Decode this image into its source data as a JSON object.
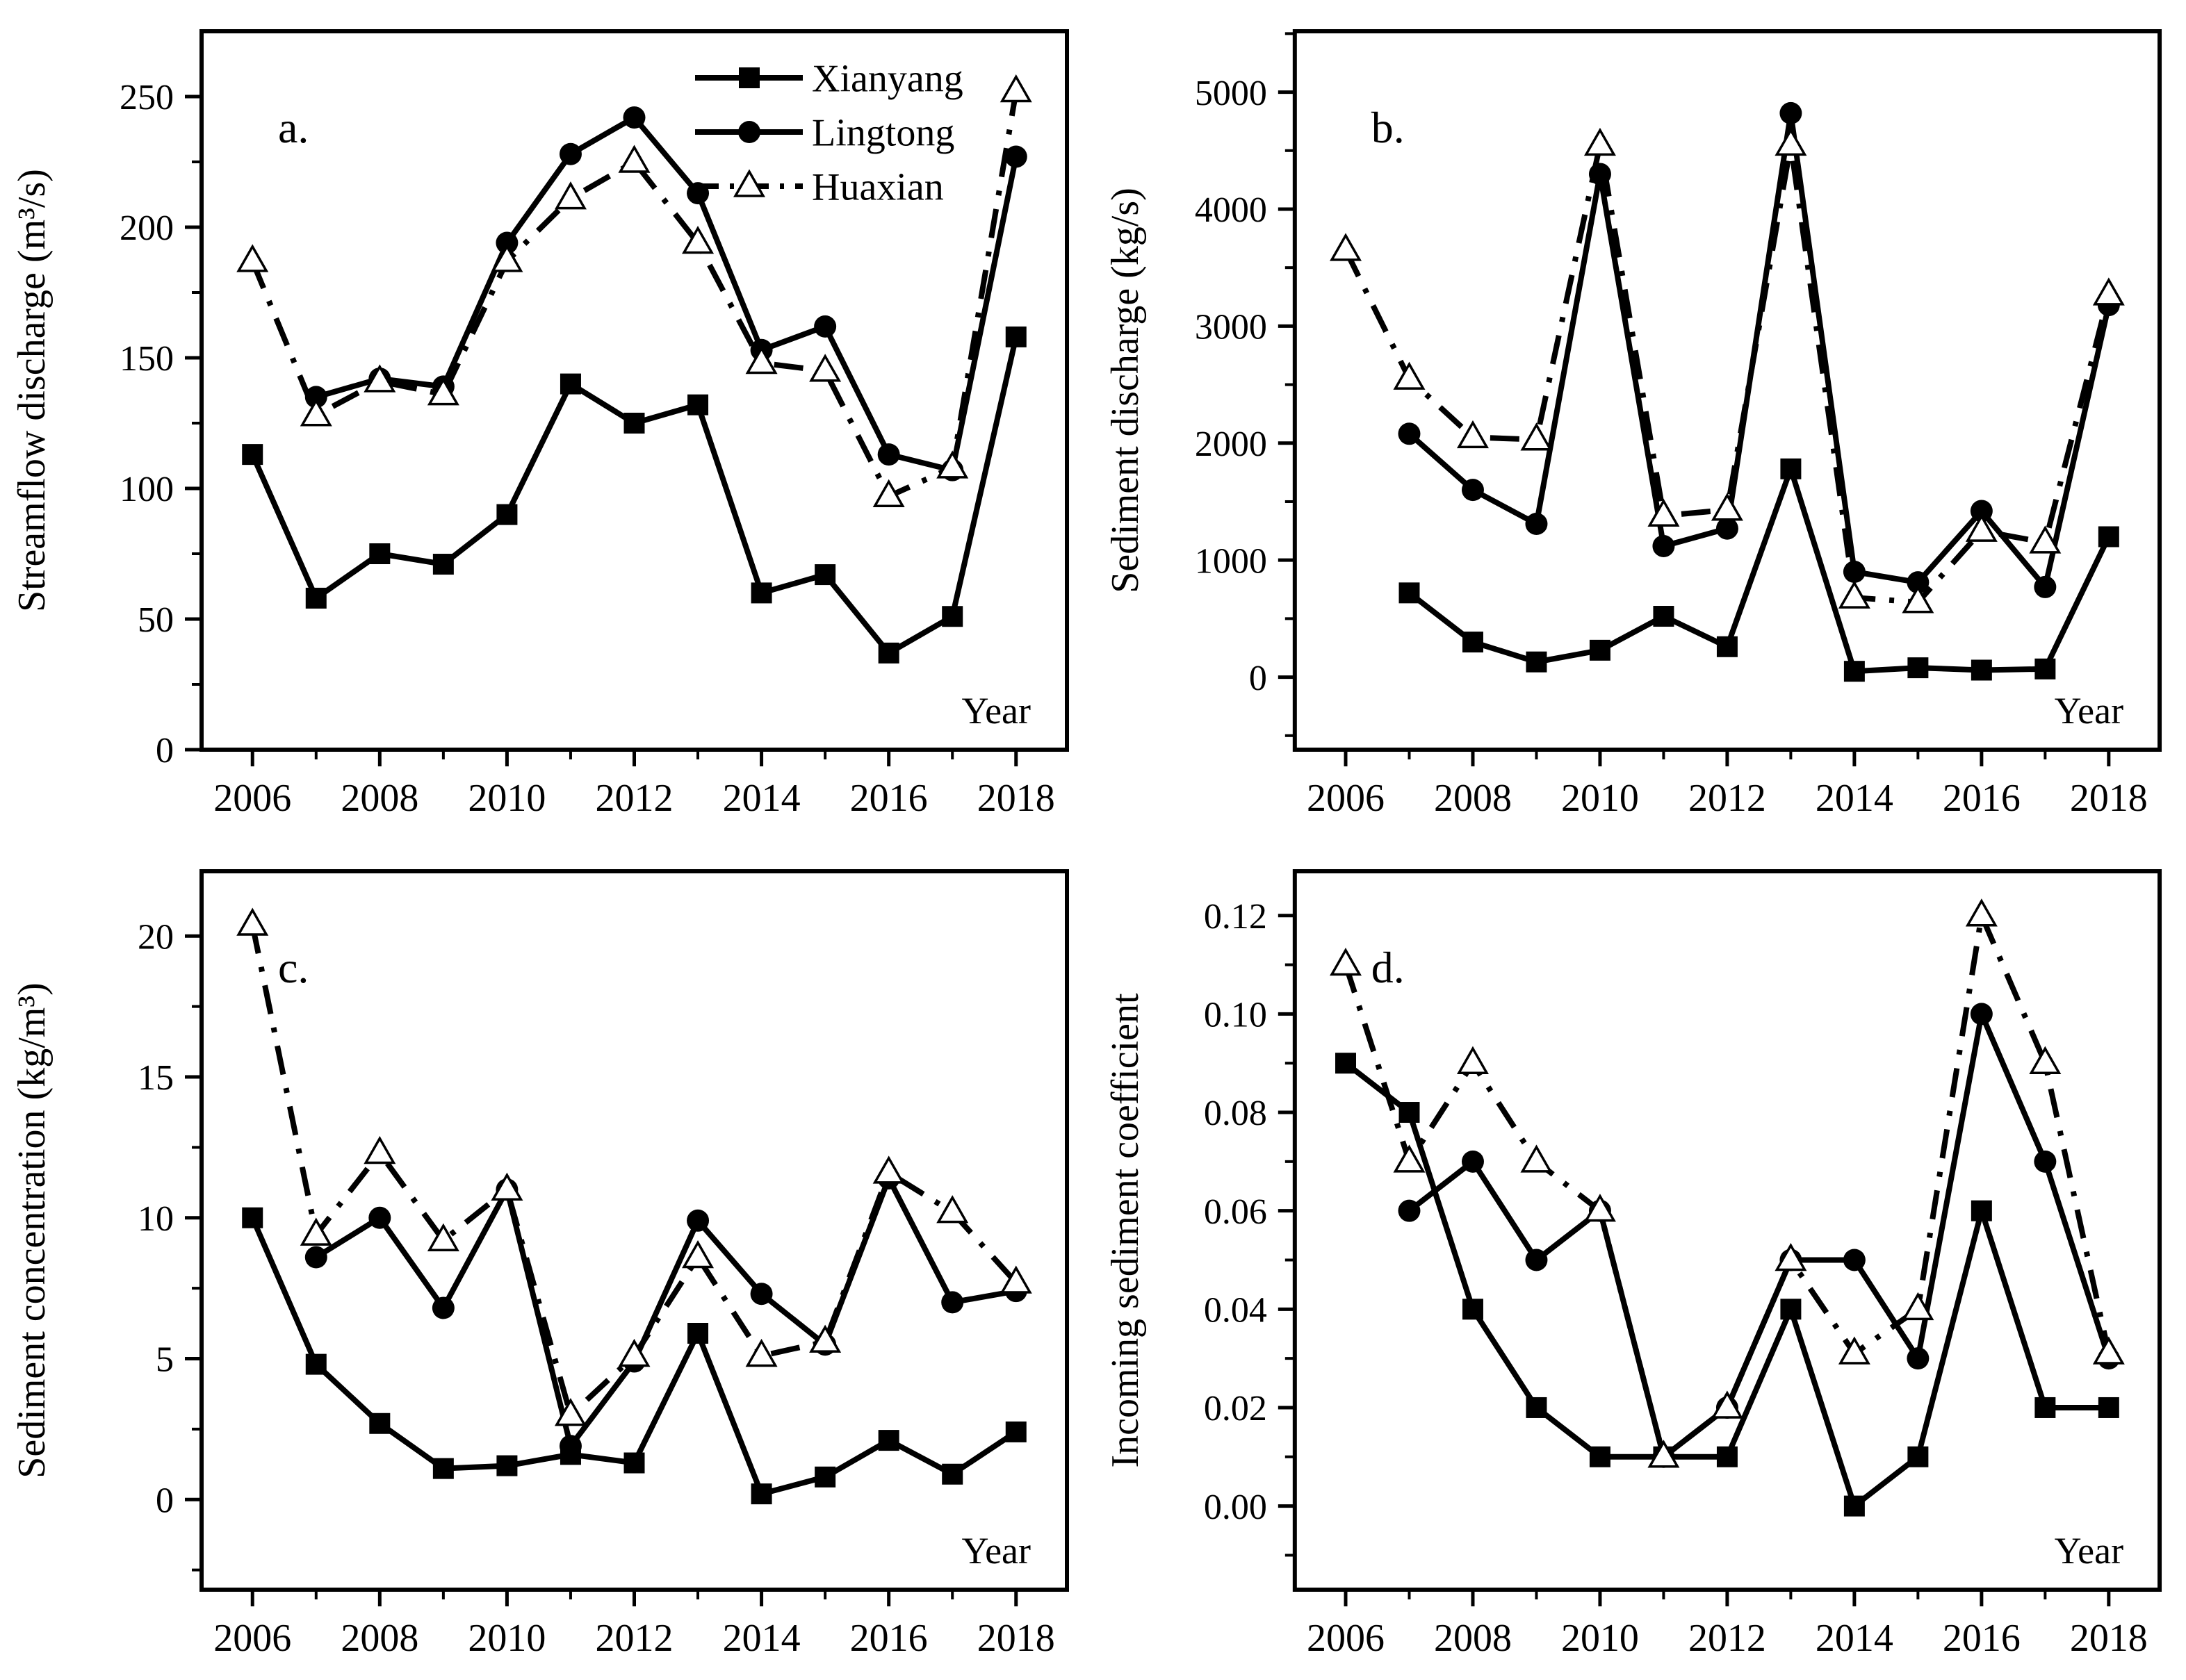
{
  "colors": {
    "foreground": "#000000",
    "background": "#ffffff"
  },
  "figure": {
    "rows": 2,
    "cols": 2,
    "marker_legend_panel": "a"
  },
  "legend": {
    "visible_on_panel": "a",
    "entries": [
      {
        "label": "Xianyang",
        "marker": "filled-square",
        "line": "solid"
      },
      {
        "label": "Lingtong",
        "marker": "filled-circle",
        "line": "solid"
      },
      {
        "label": "Huaxian",
        "marker": "open-triangle",
        "line": "dash-dot"
      }
    ]
  },
  "chart_data": [
    {
      "id": "a",
      "type": "line",
      "panel_label": "a.",
      "ylabel": "Streamflow discharge (m³/s)",
      "xlabel": "Year",
      "x": [
        2006,
        2007,
        2008,
        2009,
        2010,
        2011,
        2012,
        2013,
        2014,
        2015,
        2016,
        2017,
        2018
      ],
      "xlim": [
        2005.2,
        2018.8
      ],
      "xtick_major_values": [
        2006,
        2008,
        2010,
        2012,
        2014,
        2016,
        2018
      ],
      "xtick_major_labels": [
        "2006",
        "2008",
        "2010",
        "2012",
        "2014",
        "2016",
        "2018"
      ],
      "xtick_minor_values": [
        2007,
        2009,
        2011,
        2013,
        2015,
        2017
      ],
      "ylim": [
        0,
        275
      ],
      "ytick_values": [
        0,
        50,
        100,
        150,
        200,
        250
      ],
      "ytick_labels": [
        "0",
        "50",
        "100",
        "150",
        "200",
        "250"
      ],
      "ytick_minor_values": [
        25,
        75,
        125,
        175,
        225
      ],
      "grid": false,
      "legend_visible": true,
      "series": [
        {
          "name": "Xianyang",
          "marker": "square",
          "line": "solid",
          "values": [
            113,
            58,
            75,
            71,
            90,
            140,
            125,
            132,
            60,
            67,
            37,
            51,
            158
          ]
        },
        {
          "name": "Lingtong",
          "marker": "circle",
          "line": "solid",
          "values": [
            null,
            135,
            142,
            139,
            194,
            228,
            242,
            213,
            153,
            162,
            113,
            107,
            227
          ]
        },
        {
          "name": "Huaxian",
          "marker": "triangle",
          "line": "dashed",
          "values": [
            187,
            128,
            141,
            136,
            187,
            211,
            225,
            194,
            148,
            145,
            97,
            108,
            252
          ]
        }
      ]
    },
    {
      "id": "b",
      "type": "line",
      "panel_label": "b.",
      "ylabel": "Sediment discharge (kg/s)",
      "xlabel": "Year",
      "x": [
        2006,
        2007,
        2008,
        2009,
        2010,
        2011,
        2012,
        2013,
        2014,
        2015,
        2016,
        2017,
        2018
      ],
      "xlim": [
        2005.2,
        2018.8
      ],
      "xtick_major_values": [
        2006,
        2008,
        2010,
        2012,
        2014,
        2016,
        2018
      ],
      "xtick_major_labels": [
        "2006",
        "2008",
        "2010",
        "2012",
        "2014",
        "2016",
        "2018"
      ],
      "xtick_minor_values": [
        2007,
        2009,
        2011,
        2013,
        2015,
        2017
      ],
      "ylim": [
        -620,
        5520
      ],
      "ytick_values": [
        0,
        1000,
        2000,
        3000,
        4000,
        5000
      ],
      "ytick_labels": [
        "0",
        "1000",
        "2000",
        "3000",
        "4000",
        "5000"
      ],
      "ytick_minor_values": [
        -500,
        500,
        1500,
        2500,
        3500,
        4500,
        5500
      ],
      "grid": false,
      "legend_visible": false,
      "series": [
        {
          "name": "Xianyang",
          "marker": "square",
          "line": "solid",
          "values": [
            null,
            720,
            300,
            130,
            230,
            520,
            260,
            1780,
            50,
            80,
            60,
            70,
            1200
          ]
        },
        {
          "name": "Lingtong",
          "marker": "circle",
          "line": "solid",
          "values": [
            null,
            2080,
            1600,
            1310,
            4300,
            1120,
            1270,
            4820,
            900,
            810,
            1420,
            770,
            3180
          ]
        },
        {
          "name": "Huaxian",
          "marker": "triangle",
          "line": "dashed",
          "values": [
            3650,
            2550,
            2050,
            2030,
            4550,
            1380,
            1430,
            4550,
            680,
            640,
            1250,
            1150,
            3270
          ]
        }
      ]
    },
    {
      "id": "c",
      "type": "line",
      "panel_label": "c.",
      "ylabel": "Sediment concentration (kg/m³)",
      "xlabel": "Year",
      "x": [
        2006,
        2007,
        2008,
        2009,
        2010,
        2011,
        2012,
        2013,
        2014,
        2015,
        2016,
        2017,
        2018
      ],
      "xlim": [
        2005.2,
        2018.8
      ],
      "xtick_major_values": [
        2006,
        2008,
        2010,
        2012,
        2014,
        2016,
        2018
      ],
      "xtick_major_labels": [
        "2006",
        "2008",
        "2010",
        "2012",
        "2014",
        "2016",
        "2018"
      ],
      "xtick_minor_values": [
        2007,
        2009,
        2011,
        2013,
        2015,
        2017
      ],
      "ylim": [
        -3.2,
        22.3
      ],
      "ytick_values": [
        0,
        5,
        10,
        15,
        20
      ],
      "ytick_labels": [
        "0",
        "5",
        "10",
        "15",
        "20"
      ],
      "ytick_minor_values": [
        -2.5,
        2.5,
        7.5,
        12.5,
        17.5
      ],
      "grid": false,
      "legend_visible": false,
      "series": [
        {
          "name": "Xianyang",
          "marker": "square",
          "line": "solid",
          "values": [
            10.0,
            4.8,
            2.7,
            1.1,
            1.2,
            1.6,
            1.3,
            5.9,
            0.2,
            0.8,
            2.1,
            0.9,
            2.4
          ]
        },
        {
          "name": "Lingtong",
          "marker": "circle",
          "line": "solid",
          "values": [
            null,
            8.6,
            10.0,
            6.8,
            11.0,
            1.9,
            4.9,
            9.9,
            7.3,
            5.5,
            11.4,
            7.0,
            7.4
          ]
        },
        {
          "name": "Huaxian",
          "marker": "triangle",
          "line": "dashed",
          "values": [
            20.4,
            9.4,
            12.3,
            9.2,
            11.0,
            3.0,
            5.1,
            8.6,
            5.1,
            5.6,
            11.6,
            10.2,
            7.7
          ]
        }
      ]
    },
    {
      "id": "d",
      "type": "line",
      "panel_label": "d.",
      "ylabel": "Incoming sediment coefficient",
      "xlabel": "Year",
      "x": [
        2006,
        2007,
        2008,
        2009,
        2010,
        2011,
        2012,
        2013,
        2014,
        2015,
        2016,
        2017,
        2018
      ],
      "xlim": [
        2005.2,
        2018.8
      ],
      "xtick_major_values": [
        2006,
        2008,
        2010,
        2012,
        2014,
        2016,
        2018
      ],
      "xtick_major_labels": [
        "2006",
        "2008",
        "2010",
        "2012",
        "2014",
        "2016",
        "2018"
      ],
      "xtick_minor_values": [
        2007,
        2009,
        2011,
        2013,
        2015,
        2017
      ],
      "ylim": [
        -0.017,
        0.129
      ],
      "ytick_values": [
        0.0,
        0.02,
        0.04,
        0.06,
        0.08,
        0.1,
        0.12
      ],
      "ytick_labels": [
        "0.00",
        "0.02",
        "0.04",
        "0.06",
        "0.08",
        "0.10",
        "0.12"
      ],
      "ytick_minor_values": [
        -0.01,
        0.01,
        0.03,
        0.05,
        0.07,
        0.09,
        0.11
      ],
      "grid": false,
      "legend_visible": false,
      "series": [
        {
          "name": "Xianyang",
          "marker": "square",
          "line": "solid",
          "values": [
            0.09,
            0.08,
            0.04,
            0.02,
            0.01,
            0.01,
            0.01,
            0.04,
            0.0,
            0.01,
            0.06,
            0.02,
            0.02
          ]
        },
        {
          "name": "Lingtong",
          "marker": "circle",
          "line": "solid",
          "values": [
            null,
            0.06,
            0.07,
            0.05,
            0.06,
            0.01,
            0.02,
            0.05,
            0.05,
            0.03,
            0.1,
            0.07,
            0.03
          ]
        },
        {
          "name": "Huaxian",
          "marker": "triangle",
          "line": "dashed",
          "values": [
            0.11,
            0.07,
            0.09,
            0.07,
            0.06,
            0.01,
            0.02,
            0.05,
            0.031,
            0.04,
            0.12,
            0.09,
            0.031
          ]
        }
      ]
    }
  ]
}
